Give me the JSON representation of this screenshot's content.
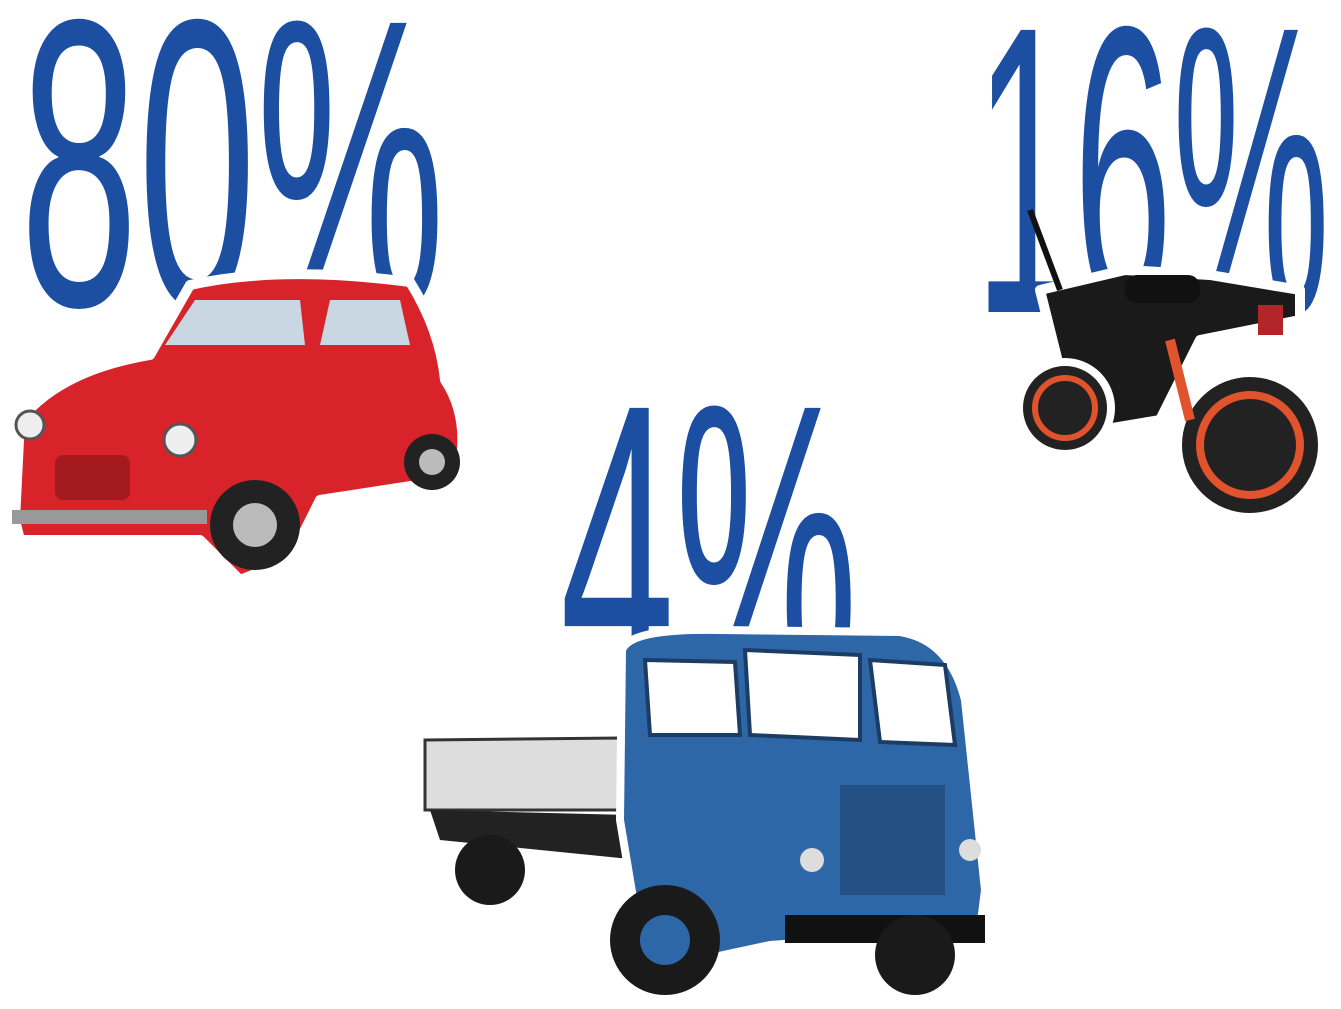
{
  "items": [
    {
      "label": "80%"
    },
    {
      "label": "16%"
    },
    {
      "label": "4%"
    }
  ]
}
